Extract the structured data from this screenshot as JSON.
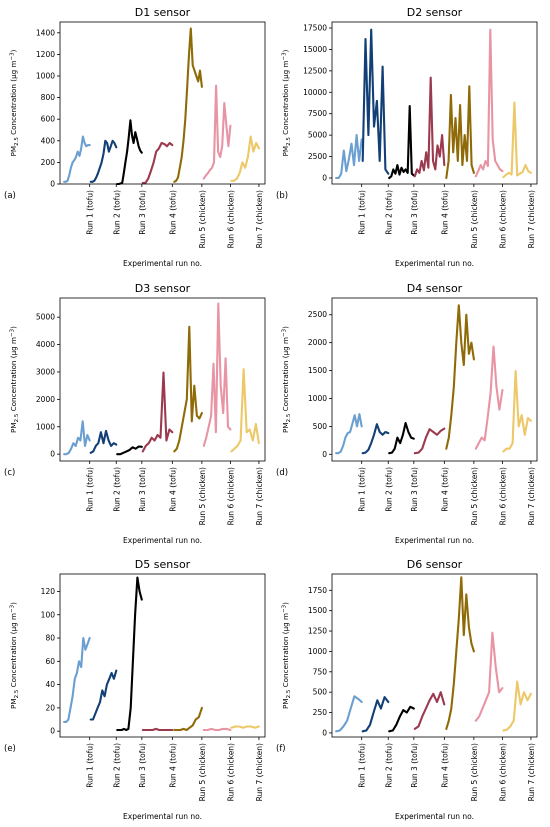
{
  "figure": {
    "xlabel": "Experimental run no.",
    "ylabel_prefix": "PM",
    "ylabel_sub": "2.5",
    "ylabel_suffix": " Concentration (µg m",
    "ylabel_sup": "−3",
    "ylabel_close": ")",
    "categories": [
      "Run 1 (tofu)",
      "Run 2 (tofu)",
      "Run 3 (tofu)",
      "Run 4 (tofu)",
      "Run 5 (chicken)",
      "Run 6 (chicken)",
      "Run 7 (chicken)"
    ],
    "run_colors": [
      "#6b9fd1",
      "#123f75",
      "#000000",
      "#9b3a4f",
      "#8f6b08",
      "#e894a4",
      "#ecc868"
    ]
  },
  "chart_data": [
    {
      "type": "line",
      "panel": "(a)",
      "title": "D1 sensor",
      "ylim": [
        0,
        1500
      ],
      "yticks": [
        0,
        200,
        400,
        600,
        800,
        1000,
        1200,
        1400
      ],
      "series": [
        {
          "values": [
            20,
            20,
            30,
            80,
            150,
            200,
            220,
            250,
            300,
            260,
            330,
            440,
            380,
            350,
            360,
            360
          ]
        },
        {
          "values": [
            20,
            20,
            30,
            60,
            100,
            150,
            200,
            280,
            400,
            380,
            300,
            350,
            400,
            380,
            340
          ]
        },
        {
          "values": [
            0,
            0,
            5,
            10,
            100,
            200,
            300,
            430,
            590,
            450,
            380,
            480,
            420,
            350,
            310,
            290
          ]
        },
        {
          "values": [
            10,
            10,
            50,
            120,
            200,
            300,
            330,
            380,
            370,
            350,
            380,
            360
          ]
        },
        {
          "values": [
            20,
            30,
            60,
            150,
            250,
            400,
            600,
            900,
            1200,
            1440,
            1100,
            1050,
            1000,
            950,
            1050,
            900
          ]
        },
        {
          "values": [
            50,
            80,
            100,
            130,
            150,
            200,
            910,
            300,
            250,
            350,
            750,
            550,
            350,
            540
          ]
        },
        {
          "values": [
            30,
            30,
            50,
            100,
            200,
            150,
            250,
            440,
            300,
            380,
            330
          ]
        }
      ]
    },
    {
      "type": "line",
      "panel": "(b)",
      "title": "D2 sensor",
      "ylim": [
        -700,
        18200
      ],
      "yticks": [
        0,
        2500,
        5000,
        7500,
        10000,
        12500,
        15000,
        17500
      ],
      "series": [
        {
          "values": [
            0,
            0,
            500,
            3200,
            800,
            2200,
            4000,
            1500,
            5000,
            2000,
            4500
          ]
        },
        {
          "values": [
            2000,
            16200,
            5000,
            17300,
            6000,
            9000,
            2000,
            13000,
            1000,
            500
          ]
        },
        {
          "values": [
            0,
            200,
            1000,
            500,
            1500,
            400,
            1200,
            700,
            1000,
            600,
            8400,
            500,
            300
          ]
        },
        {
          "values": [
            200,
            1000,
            600,
            2000,
            900,
            3000,
            1200,
            11700,
            2000,
            1000,
            3800,
            2500,
            5000,
            1500
          ]
        },
        {
          "values": [
            0,
            2000,
            9700,
            3000,
            7000,
            2000,
            8500,
            1500,
            5000,
            2000,
            10700,
            1500,
            600
          ]
        },
        {
          "values": [
            200,
            800,
            1500,
            1000,
            2000,
            1400,
            17300,
            4500,
            2000,
            1500,
            1000,
            800
          ]
        },
        {
          "values": [
            100,
            400,
            600,
            400,
            8800,
            300,
            500,
            700,
            1500,
            800,
            600
          ]
        }
      ]
    },
    {
      "type": "line",
      "panel": "(c)",
      "title": "D3 sensor",
      "ylim": [
        -250,
        5700
      ],
      "yticks": [
        0,
        1000,
        2000,
        3000,
        4000,
        5000
      ],
      "series": [
        {
          "values": [
            0,
            0,
            50,
            200,
            400,
            300,
            600,
            500,
            1200,
            300,
            700,
            500
          ]
        },
        {
          "values": [
            50,
            100,
            300,
            400,
            800,
            400,
            850,
            500,
            300,
            400,
            350
          ]
        },
        {
          "values": [
            0,
            0,
            50,
            100,
            150,
            250,
            200,
            280,
            270
          ]
        },
        {
          "values": [
            100,
            300,
            400,
            600,
            500,
            700,
            600,
            2980,
            500,
            900,
            800
          ]
        },
        {
          "values": [
            100,
            200,
            500,
            1000,
            1500,
            2000,
            4650,
            1200,
            2500,
            1400,
            1300,
            1500
          ]
        },
        {
          "values": [
            300,
            600,
            1000,
            1400,
            3300,
            800,
            5500,
            2500,
            1500,
            3500,
            1000,
            900
          ]
        },
        {
          "values": [
            100,
            200,
            300,
            500,
            3100,
            800,
            900,
            500,
            1100,
            400
          ]
        }
      ]
    },
    {
      "type": "line",
      "panel": "(d)",
      "title": "D4 sensor",
      "ylim": [
        -120,
        2800
      ],
      "yticks": [
        0,
        500,
        1000,
        1500,
        2000,
        2500
      ],
      "series": [
        {
          "values": [
            20,
            20,
            50,
            150,
            300,
            380,
            400,
            550,
            700,
            500,
            720,
            500
          ]
        },
        {
          "values": [
            20,
            30,
            80,
            200,
            350,
            540,
            400,
            350,
            400,
            380
          ]
        },
        {
          "values": [
            20,
            30,
            100,
            300,
            200,
            350,
            560,
            400,
            300,
            280
          ]
        },
        {
          "values": [
            20,
            30,
            100,
            300,
            450,
            400,
            350,
            420,
            460
          ]
        },
        {
          "values": [
            100,
            300,
            700,
            1200,
            2000,
            2670,
            2000,
            1600,
            2500,
            1800,
            2000,
            1700
          ]
        },
        {
          "values": [
            100,
            200,
            300,
            250,
            650,
            1100,
            1930,
            1200,
            800,
            1150
          ]
        },
        {
          "values": [
            50,
            100,
            100,
            200,
            1490,
            500,
            700,
            350,
            650,
            600
          ]
        }
      ]
    },
    {
      "type": "line",
      "panel": "(e)",
      "title": "D5 sensor",
      "ylim": [
        -5,
        135
      ],
      "yticks": [
        0,
        20,
        40,
        60,
        80,
        100,
        120
      ],
      "series": [
        {
          "values": [
            8,
            8,
            10,
            20,
            30,
            45,
            50,
            60,
            55,
            80,
            70,
            75,
            80
          ]
        },
        {
          "values": [
            10,
            10,
            15,
            20,
            25,
            35,
            30,
            40,
            45,
            50,
            45,
            52
          ]
        },
        {
          "values": [
            1,
            1,
            1,
            2,
            1,
            2,
            20,
            60,
            100,
            132,
            120,
            113
          ]
        },
        {
          "values": [
            1,
            1,
            1,
            1,
            2,
            1,
            1,
            1,
            1,
            1
          ]
        },
        {
          "values": [
            1,
            1,
            1,
            2,
            1,
            3,
            5,
            10,
            12,
            20
          ]
        },
        {
          "values": [
            1,
            1,
            2,
            1,
            1,
            2,
            2,
            1
          ]
        },
        {
          "values": [
            3,
            4,
            4,
            3,
            4,
            4,
            3,
            4
          ]
        }
      ]
    },
    {
      "type": "line",
      "panel": "(f)",
      "title": "D6 sensor",
      "ylim": [
        -50,
        1950
      ],
      "yticks": [
        0,
        250,
        500,
        750,
        1000,
        1250,
        1500,
        1750
      ],
      "series": [
        {
          "values": [
            20,
            30,
            80,
            150,
            300,
            450,
            420,
            380
          ]
        },
        {
          "values": [
            20,
            30,
            100,
            250,
            400,
            300,
            440,
            380
          ]
        },
        {
          "values": [
            20,
            30,
            100,
            200,
            280,
            250,
            320,
            300
          ]
        },
        {
          "values": [
            50,
            80,
            200,
            300,
            400,
            480,
            380,
            500,
            350
          ]
        },
        {
          "values": [
            50,
            150,
            300,
            600,
            1000,
            1400,
            1910,
            1200,
            1700,
            1300,
            1100,
            1000
          ]
        },
        {
          "values": [
            150,
            200,
            300,
            400,
            500,
            1230,
            800,
            500,
            550
          ]
        },
        {
          "values": [
            30,
            40,
            80,
            150,
            630,
            350,
            500,
            400,
            480
          ]
        }
      ]
    }
  ]
}
